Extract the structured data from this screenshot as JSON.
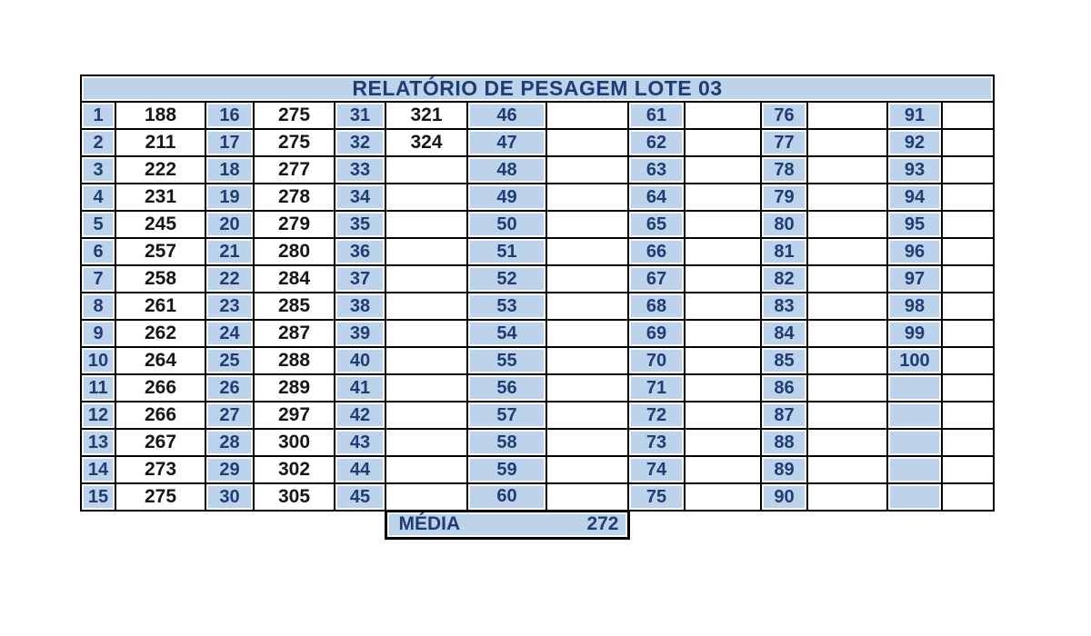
{
  "title": "RELATÓRIO DE PESAGEM LOTE 03",
  "table": {
    "row_count": 15,
    "groups": [
      {
        "numbers": [
          "1",
          "2",
          "3",
          "4",
          "5",
          "6",
          "7",
          "8",
          "9",
          "10",
          "11",
          "12",
          "13",
          "14",
          "15"
        ],
        "values": [
          "188",
          "211",
          "222",
          "231",
          "245",
          "257",
          "258",
          "261",
          "262",
          "264",
          "266",
          "266",
          "267",
          "273",
          "275"
        ]
      },
      {
        "numbers": [
          "16",
          "17",
          "18",
          "19",
          "20",
          "21",
          "22",
          "23",
          "24",
          "25",
          "26",
          "27",
          "28",
          "29",
          "30"
        ],
        "values": [
          "275",
          "275",
          "277",
          "278",
          "279",
          "280",
          "284",
          "285",
          "287",
          "288",
          "289",
          "297",
          "300",
          "302",
          "305"
        ]
      },
      {
        "numbers": [
          "31",
          "32",
          "33",
          "34",
          "35",
          "36",
          "37",
          "38",
          "39",
          "40",
          "41",
          "42",
          "43",
          "44",
          "45"
        ],
        "values": [
          "321",
          "324",
          "",
          "",
          "",
          "",
          "",
          "",
          "",
          "",
          "",
          "",
          "",
          "",
          ""
        ]
      },
      {
        "numbers": [
          "46",
          "47",
          "48",
          "49",
          "50",
          "51",
          "52",
          "53",
          "54",
          "55",
          "56",
          "57",
          "58",
          "59",
          "60"
        ],
        "values": [
          "",
          "",
          "",
          "",
          "",
          "",
          "",
          "",
          "",
          "",
          "",
          "",
          "",
          "",
          ""
        ]
      },
      {
        "numbers": [
          "61",
          "62",
          "63",
          "64",
          "65",
          "66",
          "67",
          "68",
          "69",
          "70",
          "71",
          "72",
          "73",
          "74",
          "75"
        ],
        "values": [
          "",
          "",
          "",
          "",
          "",
          "",
          "",
          "",
          "",
          "",
          "",
          "",
          "",
          "",
          ""
        ]
      },
      {
        "numbers": [
          "76",
          "77",
          "78",
          "79",
          "80",
          "81",
          "82",
          "83",
          "84",
          "85",
          "86",
          "87",
          "88",
          "89",
          "90"
        ],
        "values": [
          "",
          "",
          "",
          "",
          "",
          "",
          "",
          "",
          "",
          "",
          "",
          "",
          "",
          "",
          ""
        ]
      },
      {
        "numbers": [
          "91",
          "92",
          "93",
          "94",
          "95",
          "96",
          "97",
          "98",
          "99",
          "100",
          "",
          "",
          "",
          "",
          ""
        ],
        "values": [
          "",
          "",
          "",
          "",
          "",
          "",
          "",
          "",
          "",
          "",
          "",
          "",
          "",
          "",
          ""
        ]
      }
    ]
  },
  "footer": {
    "label": "MÉDIA",
    "value": "272"
  },
  "colors": {
    "cell_blue": "#bdd3ec",
    "text_navy": "#1f3d73",
    "value_ink": "#161616",
    "grid_black": "#000000"
  }
}
